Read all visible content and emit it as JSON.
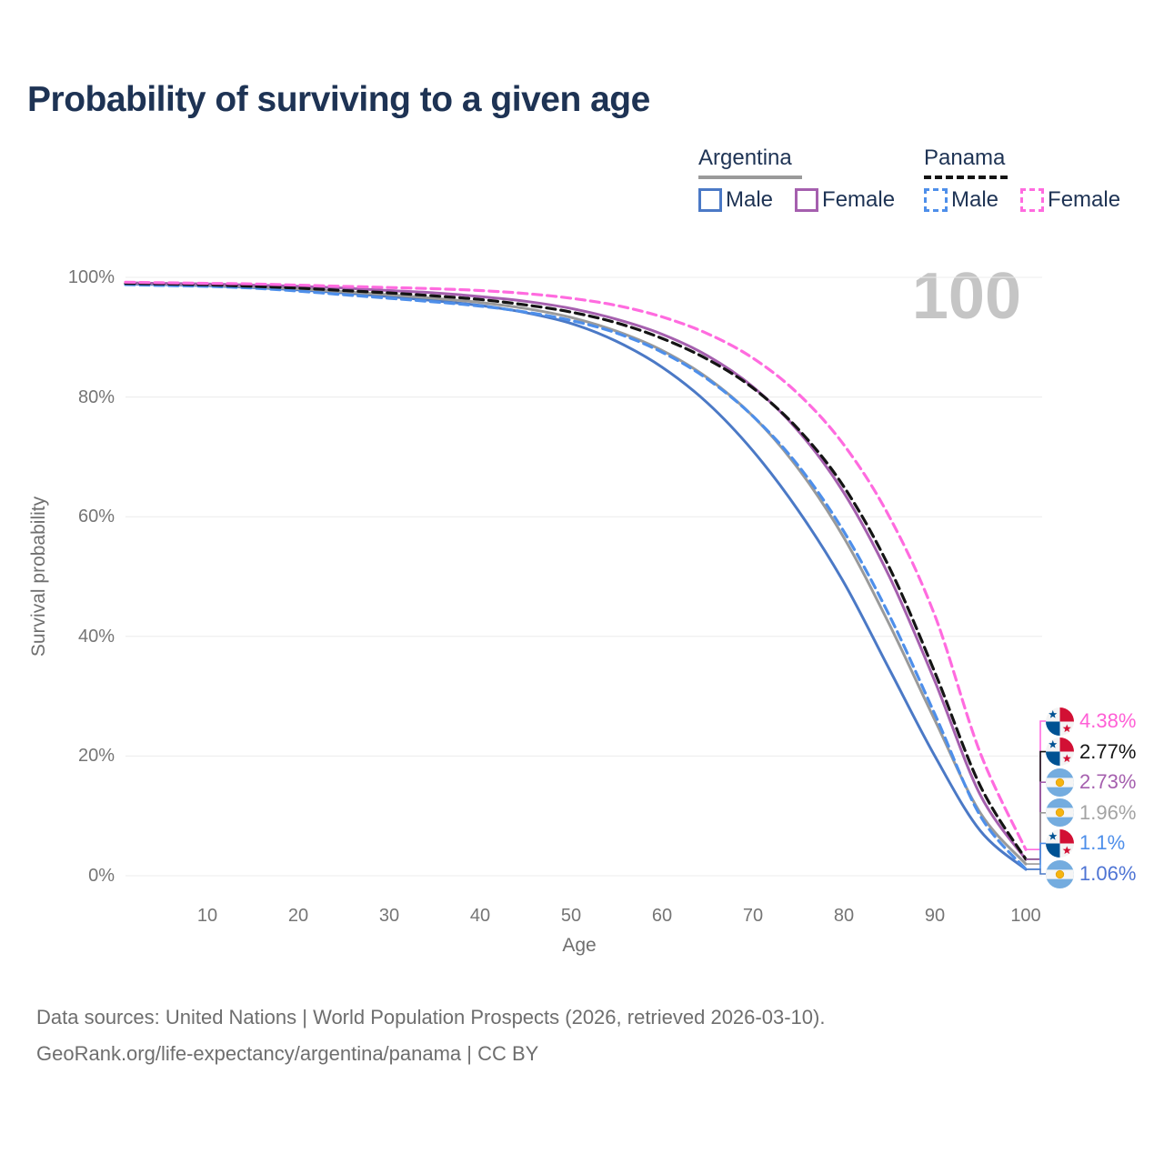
{
  "title": "Probability of surviving to a given age",
  "watermark": "100",
  "legend": {
    "groups": [
      {
        "name": "Argentina",
        "line_color": "#9A9A9A",
        "line_style": "solid",
        "items": [
          {
            "label": "Male",
            "color": "#4B79C6",
            "style": "solid"
          },
          {
            "label": "Female",
            "color": "#A55FAE",
            "style": "solid"
          }
        ]
      },
      {
        "name": "Panama",
        "line_color": "#141414",
        "line_style": "dashed",
        "items": [
          {
            "label": "Male",
            "color": "#4E8FEA",
            "style": "dashed"
          },
          {
            "label": "Female",
            "color": "#FF6BDF",
            "style": "dashed"
          }
        ]
      }
    ]
  },
  "chart_data": {
    "type": "line",
    "title": "Probability of surviving to a given age",
    "xlabel": "Age",
    "ylabel": "Survival probability",
    "xlim": [
      0,
      100
    ],
    "ylim": [
      0,
      100
    ],
    "x_ticks": [
      10,
      20,
      30,
      40,
      50,
      60,
      70,
      80,
      90,
      100
    ],
    "y_gridlines_pct": [
      100,
      80,
      60,
      40,
      20,
      0
    ],
    "y_tick_labels": [
      "100%",
      "80%",
      "60%",
      "40%",
      "20%",
      "0%"
    ],
    "grid": "horizontal",
    "legend_position": "top-right",
    "ages": [
      1,
      5,
      10,
      15,
      20,
      25,
      30,
      35,
      40,
      45,
      50,
      55,
      60,
      65,
      70,
      75,
      80,
      85,
      90,
      95,
      100
    ],
    "series": [
      {
        "name": "Argentina Male",
        "country": "Argentina",
        "sex": "Male",
        "color": "#4B79C6",
        "dash": false,
        "flag": "argentina",
        "end_label": "1.06%",
        "end_label_color": "#4E74D4",
        "values": [
          98.9,
          98.8,
          98.6,
          98.3,
          97.9,
          97.4,
          96.8,
          96.1,
          95.3,
          94.1,
          92.3,
          89.3,
          85.0,
          79.0,
          71.0,
          61.0,
          49.0,
          34.5,
          20.0,
          7.5,
          1.06
        ]
      },
      {
        "name": "Argentina Both sexes",
        "country": "Argentina",
        "sex": "Both",
        "color": "#9A9A9A",
        "dash": false,
        "flag": "argentina",
        "end_label": "1.96%",
        "end_label_color": "#A3A3A3",
        "values": [
          99.0,
          98.9,
          98.7,
          98.4,
          98.1,
          97.6,
          97.1,
          96.5,
          95.8,
          94.8,
          93.3,
          91.0,
          87.8,
          83.2,
          76.8,
          68.0,
          56.5,
          42.0,
          26.0,
          10.5,
          1.96
        ]
      },
      {
        "name": "Argentina Female",
        "country": "Argentina",
        "sex": "Female",
        "color": "#A55FAE",
        "dash": false,
        "flag": "argentina",
        "end_label": "2.73%",
        "end_label_color": "#A55FAE",
        "values": [
          99.1,
          99.0,
          98.9,
          98.7,
          98.5,
          98.2,
          97.8,
          97.4,
          96.8,
          96.0,
          94.8,
          93.0,
          90.5,
          86.9,
          81.7,
          74.3,
          64.0,
          50.0,
          32.5,
          13.5,
          2.73
        ]
      },
      {
        "name": "Panama Male",
        "country": "Panama",
        "sex": "Male",
        "color": "#4E8FEA",
        "dash": true,
        "flag": "panama",
        "end_label": "1.1%",
        "end_label_color": "#4E8FEA",
        "values": [
          98.8,
          98.65,
          98.5,
          98.2,
          97.7,
          97.1,
          96.5,
          95.9,
          95.2,
          94.2,
          92.8,
          90.7,
          87.5,
          83.0,
          76.8,
          68.5,
          57.5,
          43.5,
          27.0,
          10.0,
          1.1
        ]
      },
      {
        "name": "Panama Both sexes",
        "country": "Panama",
        "sex": "Both",
        "color": "#141414",
        "dash": true,
        "flag": "panama",
        "end_label": "2.77%",
        "end_label_color": "#141414",
        "values": [
          99.0,
          98.9,
          98.75,
          98.5,
          98.2,
          97.8,
          97.4,
          96.9,
          96.3,
          95.4,
          94.2,
          92.4,
          89.8,
          86.3,
          81.5,
          74.6,
          65.0,
          51.5,
          34.0,
          15.0,
          2.77
        ]
      },
      {
        "name": "Panama Female",
        "country": "Panama",
        "sex": "Female",
        "color": "#FF6BDF",
        "dash": true,
        "flag": "panama",
        "end_label": "4.38%",
        "end_label_color": "#FF5FD6",
        "values": [
          99.2,
          99.1,
          99.0,
          98.9,
          98.7,
          98.5,
          98.3,
          98.1,
          97.8,
          97.3,
          96.5,
          95.3,
          93.4,
          90.6,
          86.5,
          80.5,
          72.0,
          60.0,
          43.5,
          20.5,
          4.38
        ]
      }
    ]
  },
  "footer": {
    "line1": "Data sources: United Nations | World Population Prospects (2026, retrieved 2026-03-10).",
    "line2": "GeoRank.org/life-expectancy/argentina/panama | CC BY"
  }
}
